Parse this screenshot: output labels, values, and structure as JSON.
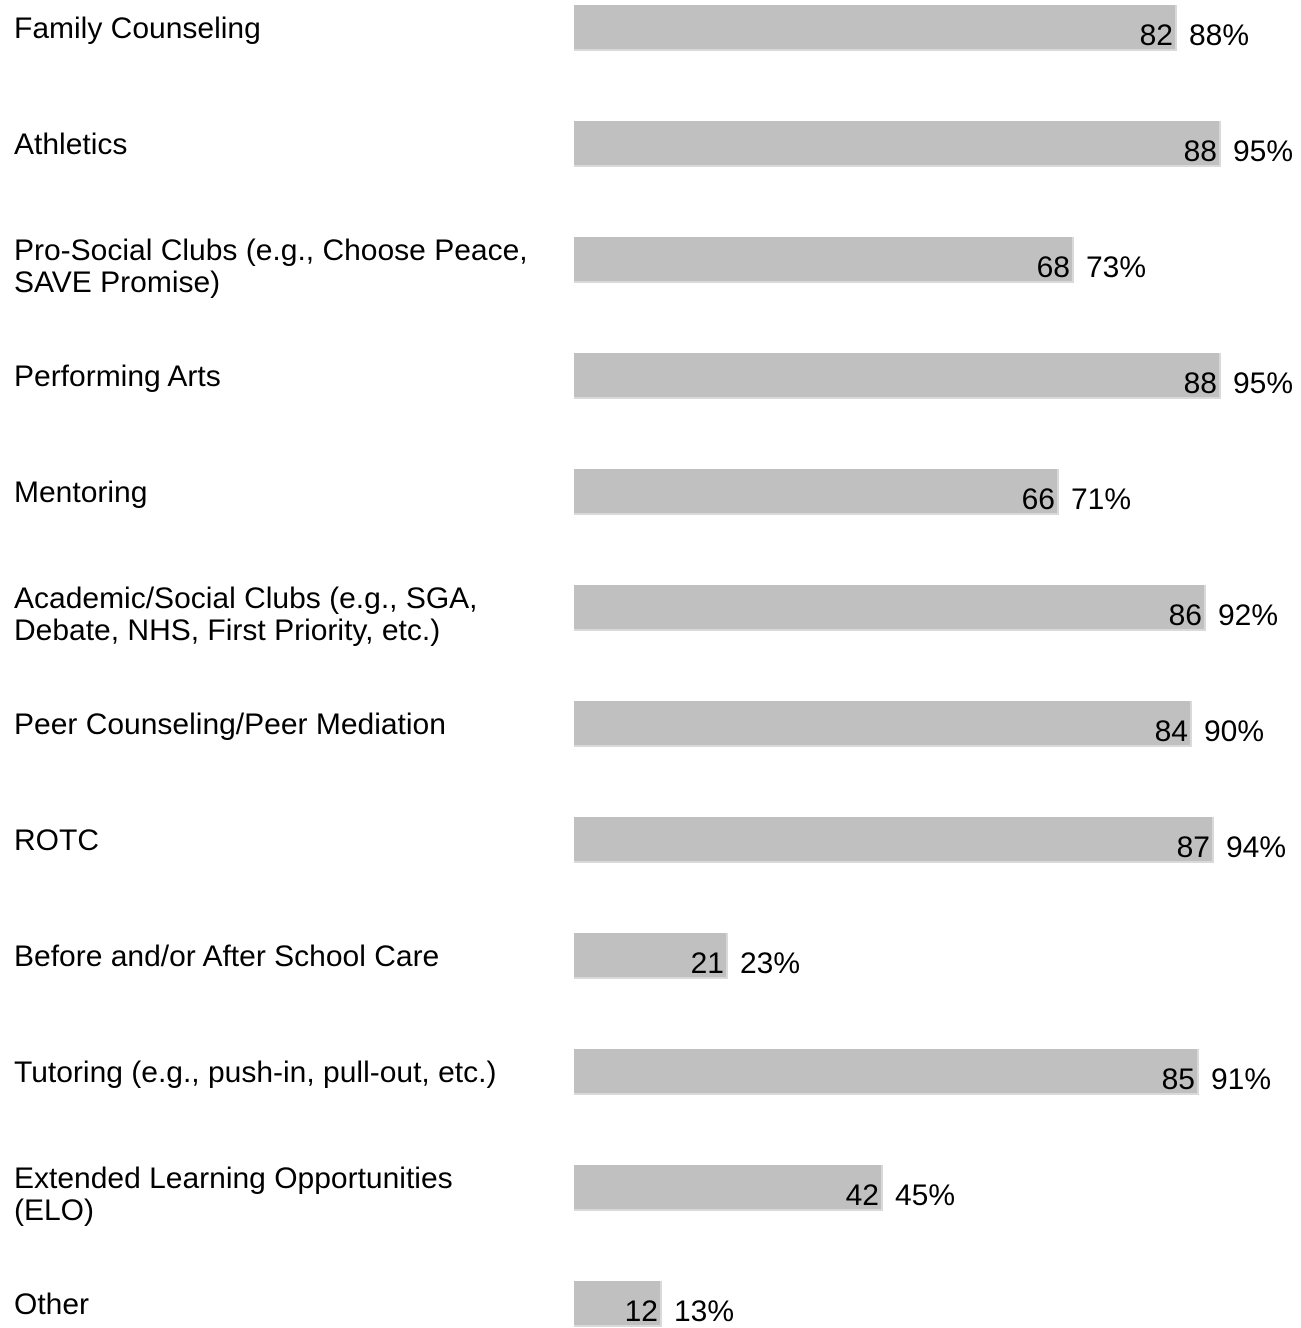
{
  "chart_data": {
    "type": "bar",
    "orientation": "horizontal",
    "title": "",
    "xlabel": "",
    "ylabel": "",
    "xlim": [
      0,
      93
    ],
    "grid": false,
    "bar_color": "#c0c0c0",
    "categories": [
      "Family Counseling",
      "Athletics",
      "Pro-Social Clubs (e.g., Choose Peace,\nSAVE Promise)",
      "Performing Arts",
      "Mentoring",
      "Academic/Social Clubs (e.g., SGA,\nDebate, NHS, First Priority, etc.)",
      "Peer Counseling/Peer Mediation",
      "ROTC",
      "Before and/or After School Care",
      "Tutoring (e.g., push-in, pull-out, etc.)",
      "Extended Learning Opportunities\n(ELO)",
      "Other"
    ],
    "values": [
      82,
      88,
      68,
      88,
      66,
      86,
      84,
      87,
      21,
      85,
      42,
      12
    ],
    "percent_labels": [
      "88%",
      "95%",
      "73%",
      "95%",
      "71%",
      "92%",
      "90%",
      "94%",
      "23%",
      "91%",
      "45%",
      "13%"
    ]
  }
}
